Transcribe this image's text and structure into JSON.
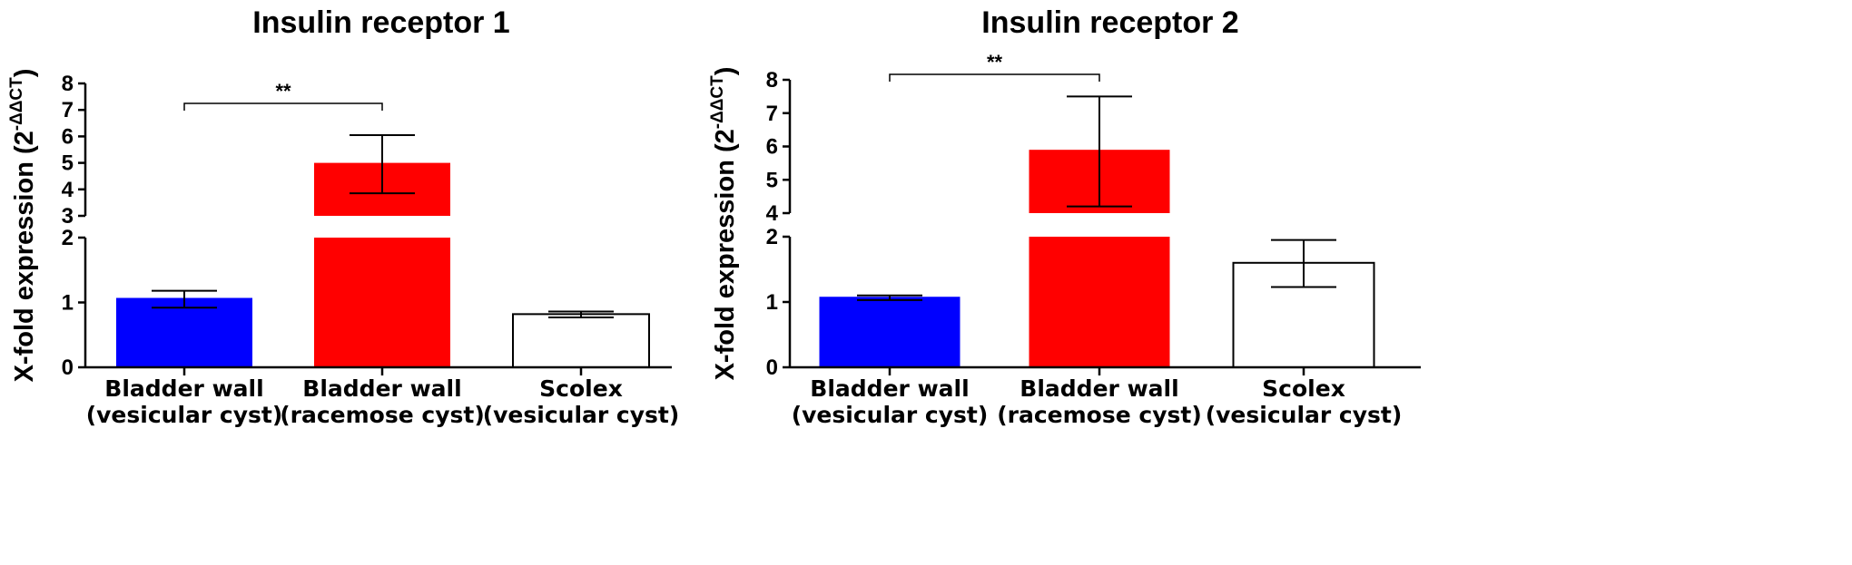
{
  "chart_data": [
    {
      "type": "bar",
      "title": "Insulin receptor 1",
      "ylabel": "X-fold expression (2",
      "ylabel_sup": "-ΔΔCT",
      "ylabel_close": ")",
      "categories": [
        [
          "Bladder wall",
          "(vesicular cyst)"
        ],
        [
          "Bladder wall",
          "(racemose cyst)"
        ],
        [
          "Scolex",
          "(vesicular cyst)"
        ]
      ],
      "values": [
        1.07,
        5.0,
        0.82
      ],
      "errors": [
        [
          0.92,
          1.18
        ],
        [
          3.85,
          6.05
        ],
        [
          0.77,
          0.86
        ]
      ],
      "colors": [
        "#0000ff",
        "#ff0000",
        "#ffffff"
      ],
      "axis_break": {
        "lower": [
          0,
          2
        ],
        "upper": [
          3,
          8
        ]
      },
      "lower_ticks": [
        "0",
        "1",
        "2"
      ],
      "upper_ticks": [
        "3",
        "4",
        "5",
        "6",
        "7",
        "8"
      ],
      "significance": {
        "from": 0,
        "to": 1,
        "label": "**"
      }
    },
    {
      "type": "bar",
      "title": "Insulin receptor 2",
      "ylabel": "X-fold expression (2",
      "ylabel_sup": "-ΔΔCT",
      "ylabel_close": ")",
      "categories": [
        [
          "Bladder wall",
          "(vesicular cyst)"
        ],
        [
          "Bladder wall",
          "(racemose cyst)"
        ],
        [
          "Scolex",
          "(vesicular cyst)"
        ]
      ],
      "values": [
        1.08,
        5.9,
        1.6
      ],
      "errors": [
        [
          1.03,
          1.1
        ],
        [
          4.2,
          7.5
        ],
        [
          1.23,
          1.95
        ]
      ],
      "colors": [
        "#0000ff",
        "#ff0000",
        "#ffffff"
      ],
      "axis_break": {
        "lower": [
          0,
          2
        ],
        "upper": [
          4,
          8
        ]
      },
      "lower_ticks": [
        "0",
        "1",
        "2"
      ],
      "upper_ticks": [
        "4",
        "5",
        "6",
        "7",
        "8"
      ],
      "significance": {
        "from": 0,
        "to": 1,
        "label": "**"
      }
    }
  ]
}
